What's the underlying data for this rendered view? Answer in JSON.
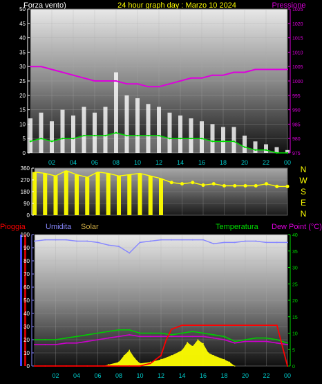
{
  "header": {
    "left_label": "Forza vento)",
    "title": "24 hour graph day : Marzo 10 2024",
    "right_label": "Pressione"
  },
  "wind_dir_labels": [
    "N",
    "W",
    "S",
    "E",
    "N"
  ],
  "bottom_header": {
    "rain_label": "Pioggia",
    "humidity_label": "Umidita",
    "solar_label": "Solar",
    "temp_label": "Temperatura",
    "dew_label": "Dew Point (°C)"
  },
  "colors": {
    "gust": "#ffffff",
    "wind_avg": "#00dd00",
    "wind_dir": "#ffff00",
    "pressure": "#dd00dd",
    "humidity": "#8888ff",
    "temperature": "#00cc00",
    "dew_point": "#cc00cc",
    "rain": "#ff0000",
    "solar": "#ffff00"
  },
  "chart_data": [
    {
      "type": "line",
      "x_ticks": [
        "02",
        "04",
        "06",
        "08",
        "10",
        "12",
        "14",
        "16",
        "18",
        "20",
        "22",
        "00"
      ],
      "ylim": [
        0,
        50
      ],
      "y_ticks": [
        "0",
        "5",
        "10",
        "15",
        "20",
        "25",
        "30",
        "35",
        "40",
        "45",
        "50"
      ],
      "y2lim": [
        975,
        1025
      ],
      "y2_ticks": [
        "975",
        "980",
        "985",
        "990",
        "995",
        "1000",
        "1005",
        "1010",
        "1015",
        "1020",
        "1025"
      ],
      "series": [
        {
          "name": "Forza vento)",
          "kind": "gust",
          "x": [
            0,
            1,
            2,
            3,
            4,
            5,
            6,
            7,
            8,
            9,
            10,
            11,
            12,
            13,
            14,
            15,
            16,
            17,
            18,
            19,
            20,
            21,
            22,
            23,
            24
          ],
          "values": [
            12,
            14,
            11,
            15,
            13,
            16,
            14,
            16,
            28,
            20,
            19,
            17,
            16,
            14,
            13,
            12,
            11,
            10,
            9,
            9,
            6,
            4,
            3,
            2,
            1
          ]
        },
        {
          "name": "",
          "kind": "wind_avg",
          "x": [
            0,
            1,
            2,
            3,
            4,
            5,
            6,
            7,
            8,
            9,
            10,
            11,
            12,
            13,
            14,
            15,
            16,
            17,
            18,
            19,
            20,
            21,
            22,
            23,
            24
          ],
          "values": [
            4,
            5,
            4,
            5,
            5,
            6,
            6,
            6,
            7,
            6,
            6,
            6,
            6,
            5,
            5,
            5,
            5,
            4,
            4,
            4,
            2,
            1,
            1,
            0,
            0
          ]
        },
        {
          "name": "Pressione",
          "kind": "pressure",
          "x": [
            0,
            1,
            2,
            3,
            4,
            5,
            6,
            7,
            8,
            9,
            10,
            11,
            12,
            13,
            14,
            15,
            16,
            17,
            18,
            19,
            20,
            21,
            22,
            23,
            24
          ],
          "values": [
            1005,
            1005,
            1004,
            1003,
            1002,
            1001,
            1000,
            1000,
            1000,
            999,
            999,
            998,
            998,
            999,
            1000,
            1001,
            1001,
            1002,
            1002,
            1003,
            1003,
            1004,
            1004,
            1004,
            1004
          ]
        }
      ]
    },
    {
      "type": "scatter",
      "x_ticks": [
        "02",
        "04",
        "06",
        "08",
        "10",
        "12",
        "14",
        "16",
        "18",
        "20",
        "22",
        "00"
      ],
      "ylim": [
        0,
        360
      ],
      "y_ticks": [
        "0",
        "90",
        "180",
        "270",
        "360"
      ],
      "series": [
        {
          "name": "",
          "kind": "wind_dir",
          "x": [
            0,
            1,
            2,
            3,
            4,
            5,
            6,
            7,
            8,
            9,
            10,
            11,
            12,
            13,
            14,
            15,
            16,
            17,
            18,
            19,
            20,
            21,
            22,
            23,
            24
          ],
          "values": [
            330,
            320,
            300,
            340,
            310,
            290,
            330,
            320,
            300,
            310,
            320,
            300,
            280,
            250,
            240,
            250,
            230,
            240,
            225,
            225,
            225,
            225,
            240,
            220,
            220
          ]
        }
      ]
    },
    {
      "type": "line",
      "x_ticks": [
        "02",
        "04",
        "06",
        "08",
        "10",
        "12",
        "14",
        "16",
        "18",
        "20",
        "22",
        "00"
      ],
      "ylim": [
        0,
        100
      ],
      "y_ticks": [
        "0",
        "10",
        "20",
        "30",
        "40",
        "50",
        "60",
        "70",
        "80",
        "90",
        "100"
      ],
      "y2lim": [
        0,
        40
      ],
      "y2_ticks": [
        "0",
        "5",
        "10",
        "15",
        "20",
        "25",
        "30",
        "35",
        "40"
      ],
      "series": [
        {
          "name": "Umidita",
          "kind": "humidity",
          "axis": "left",
          "x": [
            0,
            1,
            2,
            3,
            4,
            5,
            6,
            7,
            8,
            9,
            10,
            11,
            12,
            13,
            14,
            15,
            16,
            17,
            18,
            19,
            20,
            21,
            22,
            23,
            24
          ],
          "values": [
            95,
            96,
            96,
            96,
            95,
            95,
            94,
            92,
            91,
            86,
            94,
            95,
            96,
            96,
            96,
            96,
            96,
            93,
            94,
            94,
            95,
            95,
            94,
            94,
            94
          ]
        },
        {
          "name": "Pioggia",
          "kind": "rain",
          "axis": "left",
          "x": [
            0,
            1,
            2,
            3,
            4,
            5,
            6,
            7,
            8,
            9,
            10,
            11,
            12,
            12.5,
            13,
            14,
            15,
            16,
            17,
            18,
            19,
            20,
            21,
            22,
            23,
            24
          ],
          "values": [
            0,
            0,
            0,
            0,
            0,
            0,
            0,
            0,
            0,
            0,
            0,
            2,
            8,
            20,
            28,
            31,
            31,
            31,
            31,
            31,
            31,
            31,
            31,
            31,
            31,
            0
          ]
        },
        {
          "name": "Temperatura",
          "kind": "temperature",
          "axis": "right",
          "x": [
            0,
            1,
            2,
            3,
            4,
            5,
            6,
            7,
            8,
            9,
            10,
            11,
            12,
            13,
            14,
            15,
            16,
            17,
            18,
            19,
            20,
            21,
            22,
            23,
            24
          ],
          "values": [
            8,
            8,
            8,
            8.5,
            9,
            9.5,
            10,
            10.5,
            11,
            11,
            10,
            10,
            10,
            9.5,
            10,
            10.5,
            10,
            9.5,
            9,
            7.5,
            8,
            8.5,
            8.5,
            8,
            7
          ]
        },
        {
          "name": "Dew Point (°C)",
          "kind": "dew_point",
          "axis": "right",
          "x": [
            0,
            1,
            2,
            3,
            4,
            5,
            6,
            7,
            8,
            9,
            10,
            11,
            12,
            13,
            14,
            15,
            16,
            17,
            18,
            19,
            20,
            21,
            22,
            23,
            24
          ],
          "values": [
            6.5,
            6.5,
            6.5,
            7,
            7,
            7.5,
            8,
            8.5,
            9,
            9.5,
            9,
            9,
            9,
            9,
            9,
            9,
            9,
            8.5,
            8,
            7,
            7.5,
            7.5,
            7.5,
            7,
            6.5
          ]
        },
        {
          "name": "Solar",
          "kind": "solar",
          "axis": "left",
          "x": [
            0,
            6.5,
            7,
            8,
            8.5,
            9,
            9.5,
            10,
            11,
            12,
            13,
            14,
            14.5,
            15,
            15.5,
            16,
            16.5,
            17,
            18,
            18.5,
            19,
            24
          ],
          "values": [
            0,
            0,
            1,
            3,
            8,
            12,
            6,
            2,
            3,
            5,
            8,
            12,
            18,
            15,
            20,
            17,
            10,
            8,
            5,
            3,
            0,
            0
          ]
        }
      ]
    }
  ]
}
